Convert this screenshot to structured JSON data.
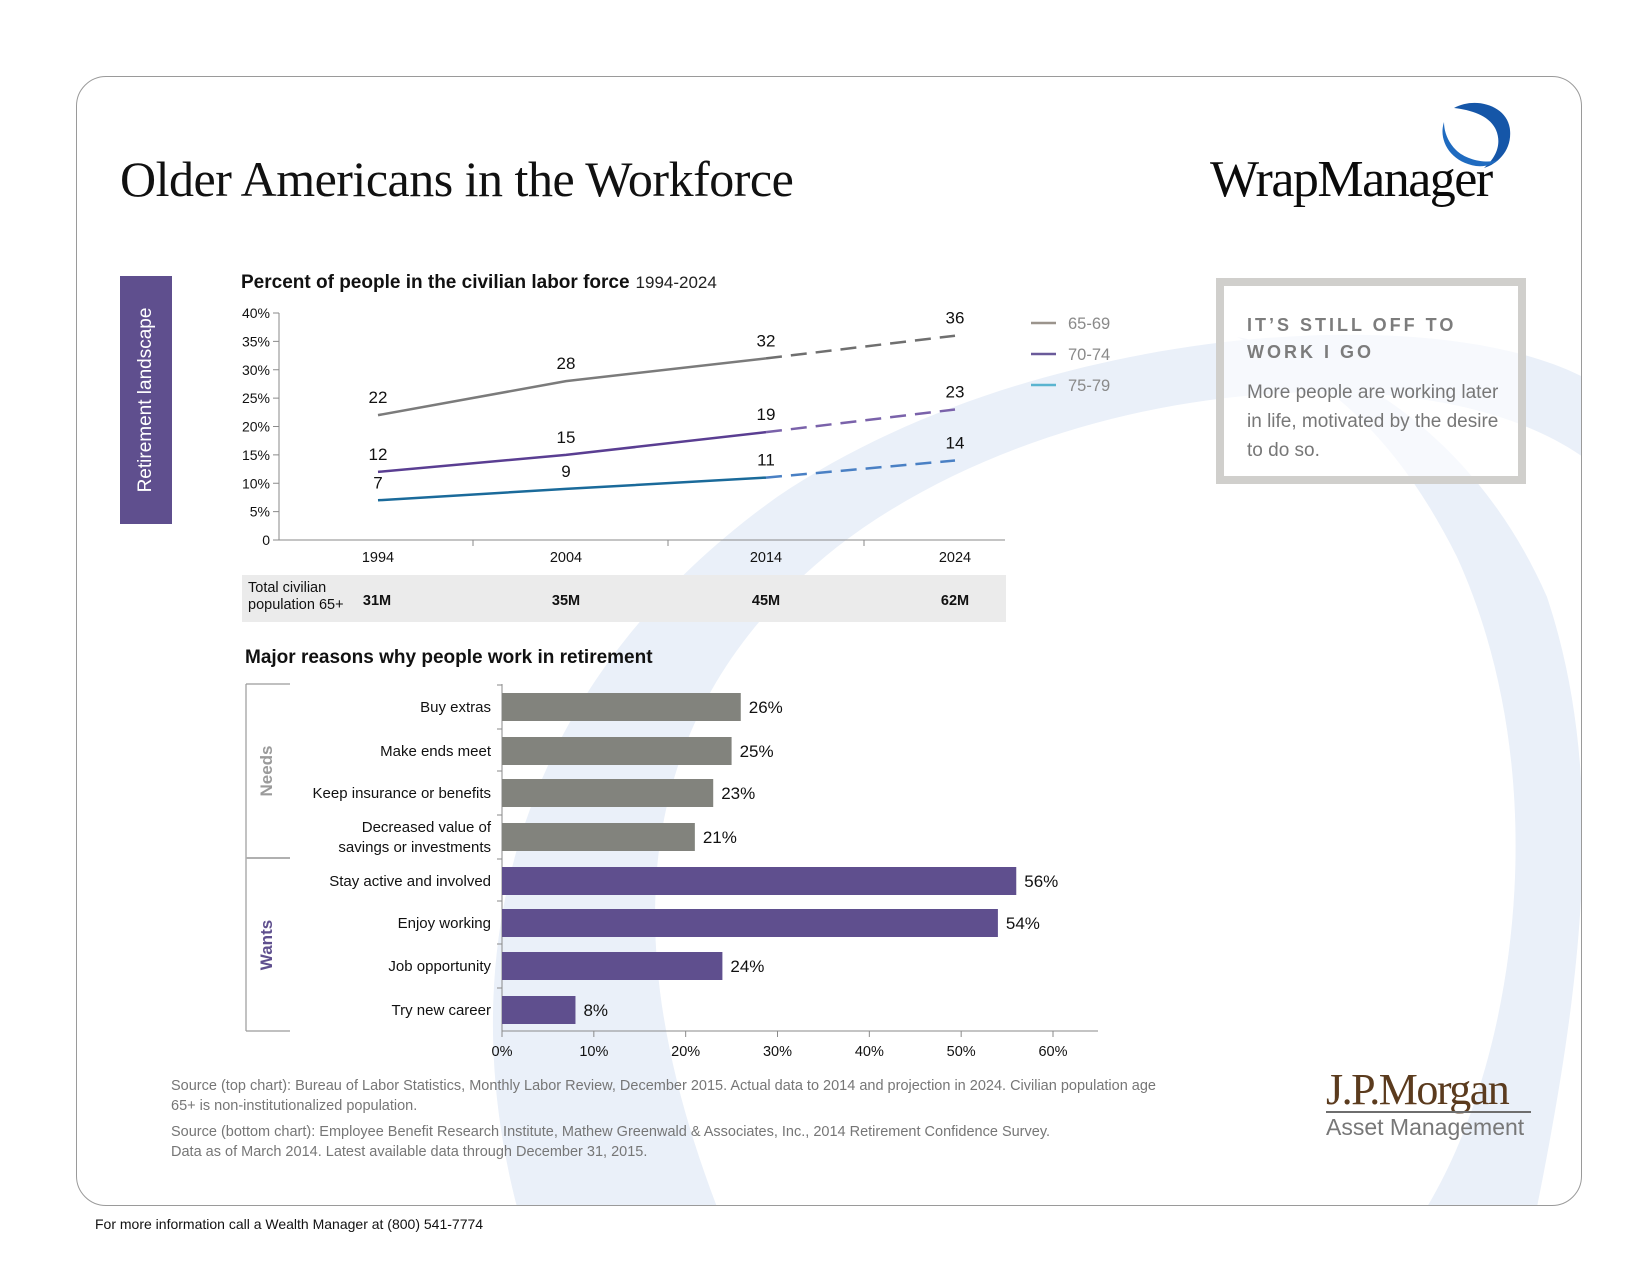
{
  "page": {
    "title": "Older Americans in the Workforce",
    "brand": "WrapManager",
    "section_tab": "Retirement landscape",
    "footer": "For more information call a Wealth Manager at (800) 541-7774"
  },
  "callout": {
    "heading": "IT’S STILL OFF TO WORK I GO",
    "body": "More people are working later in life, motivated by the desire to do so."
  },
  "population": {
    "label": "Total civilian population 65+",
    "values": [
      "31M",
      "35M",
      "45M",
      "62M"
    ]
  },
  "sources": {
    "top_line1": "Source (top chart): Bureau of Labor Statistics, Monthly Labor Review, December 2015. Actual data to 2014 and projection in 2024. Civilian population age",
    "top_line2": "65+ is non-institutionalized population.",
    "bottom_line1": "Source (bottom chart): Employee Benefit Research Institute, Mathew Greenwald & Associates, Inc., 2014 Retirement Confidence Survey.",
    "bottom_line2": "Data as of March 2014. Latest available data through December 31, 2015."
  },
  "jpmorgan": {
    "name": "J.P.Morgan",
    "sub": "Asset Management"
  },
  "chart_data": [
    {
      "type": "line",
      "title": "Percent of people in the civilian labor force",
      "subtitle": "1994-2024",
      "x": [
        "1994",
        "2004",
        "2014",
        "2024"
      ],
      "projection_from_index": 2,
      "ylim": [
        0,
        40
      ],
      "yticks": [
        0,
        5,
        10,
        15,
        20,
        25,
        30,
        35,
        40
      ],
      "ytick_labels": [
        "0",
        "5%",
        "10%",
        "15%",
        "20%",
        "25%",
        "30%",
        "35%",
        "40%"
      ],
      "legend_position": "right",
      "series": [
        {
          "name": "65-69",
          "values": [
            22,
            28,
            32,
            36
          ],
          "color": "#7b7b7b",
          "legend_color": "#9b948c",
          "projection_color": "#6f6f6f"
        },
        {
          "name": "70-74",
          "values": [
            12,
            15,
            19,
            23
          ],
          "color": "#5a3e92",
          "legend_color": "#6a5a9a",
          "projection_color": "#7a62aa"
        },
        {
          "name": "75-79",
          "values": [
            7,
            9,
            11,
            14
          ],
          "color": "#1a6a9a",
          "legend_color": "#5ab4d0",
          "projection_color": "#4a80c4"
        }
      ]
    },
    {
      "type": "bar",
      "orientation": "horizontal",
      "title": "Major reasons why people work in retirement",
      "xlim": [
        0,
        60
      ],
      "xticks": [
        0,
        10,
        20,
        30,
        40,
        50,
        60
      ],
      "xtick_labels": [
        "0%",
        "10%",
        "20%",
        "30%",
        "40%",
        "50%",
        "60%"
      ],
      "groups": [
        {
          "name": "Needs",
          "color": "#82837d",
          "label_color": "#9a9a9a",
          "categories": [
            {
              "label": "Buy extras",
              "value": 26,
              "value_label": "26%"
            },
            {
              "label": "Make ends meet",
              "value": 25,
              "value_label": "25%"
            },
            {
              "label": "Keep insurance or benefits",
              "value": 23,
              "value_label": "23%"
            },
            {
              "label": "Decreased value of\nsavings or investments",
              "value": 21,
              "value_label": "21%"
            }
          ]
        },
        {
          "name": "Wants",
          "color": "#5f4f8e",
          "label_color": "#5f4f8e",
          "categories": [
            {
              "label": "Stay active and involved",
              "value": 56,
              "value_label": "56%"
            },
            {
              "label": "Enjoy working",
              "value": 54,
              "value_label": "54%"
            },
            {
              "label": "Job opportunity",
              "value": 24,
              "value_label": "24%"
            },
            {
              "label": "Try new career",
              "value": 8,
              "value_label": "8%"
            }
          ]
        }
      ]
    }
  ]
}
